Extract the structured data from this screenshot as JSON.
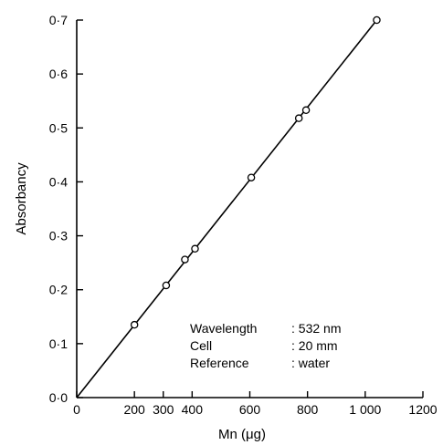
{
  "chart_data": {
    "type": "scatter",
    "xlabel": "Mn  (μg)",
    "ylabel": "Absorbancy",
    "xlim": [
      0,
      1200
    ],
    "ylim": [
      0,
      0.7
    ],
    "x_ticks": [
      0,
      200,
      300,
      400,
      600,
      800,
      1000,
      1200
    ],
    "x_tick_labels": [
      "0",
      "200",
      "300",
      "400",
      "600",
      "800",
      "1 000",
      "1200"
    ],
    "y_ticks": [
      0,
      0.1,
      0.2,
      0.3,
      0.4,
      0.5,
      0.6,
      0.7
    ],
    "y_tick_labels": [
      "0·0",
      "0·1",
      "0·2",
      "0·3",
      "0·4",
      "0·5",
      "0·6",
      "0·7"
    ],
    "series": [
      {
        "points": [
          {
            "x": 200,
            "y": 0.135
          },
          {
            "x": 310,
            "y": 0.208
          },
          {
            "x": 375,
            "y": 0.256
          },
          {
            "x": 410,
            "y": 0.276
          },
          {
            "x": 605,
            "y": 0.408
          },
          {
            "x": 770,
            "y": 0.518
          },
          {
            "x": 795,
            "y": 0.533
          },
          {
            "x": 1040,
            "y": 0.7
          }
        ],
        "fit_line": {
          "x": [
            0,
            1040
          ],
          "y": [
            0,
            0.7
          ]
        }
      }
    ],
    "grid": false,
    "annotations": [
      {
        "label": "Wavelength",
        "value": ": 532 nm"
      },
      {
        "label": "Cell",
        "value": ": 20 mm"
      },
      {
        "label": "Reference",
        "value": ": water"
      }
    ]
  }
}
